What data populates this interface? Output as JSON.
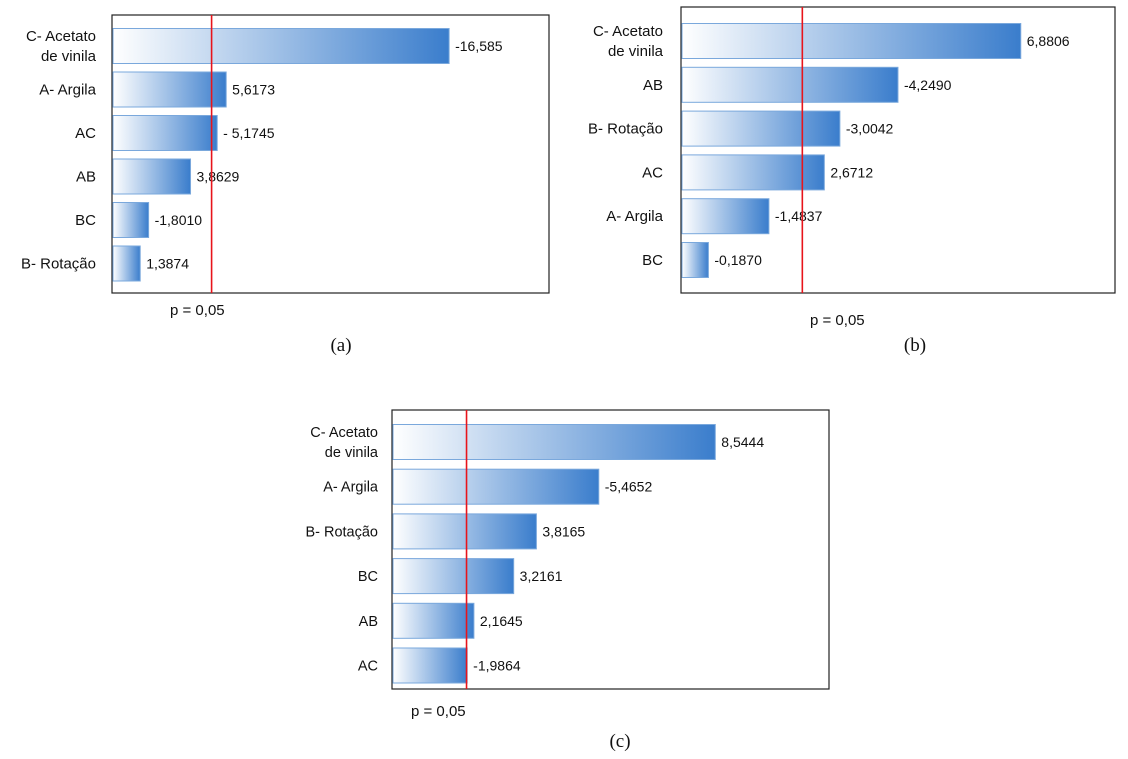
{
  "chart_data": [
    {
      "type": "bar",
      "orientation": "horizontal",
      "categories": [
        "C- Acetato de vinila",
        "A- Argila",
        "AC",
        "AB",
        "BC",
        "B- Rotação"
      ],
      "category_lines": [
        [
          "C- Acetato",
          "de vinila"
        ],
        [
          "A- Argila"
        ],
        [
          "AC"
        ],
        [
          "AB"
        ],
        [
          "BC"
        ],
        [
          "B- Rotação"
        ]
      ],
      "values": [
        16.585,
        5.6173,
        5.1745,
        3.8629,
        1.801,
        1.3874
      ],
      "value_labels": [
        "-16,585",
        "5,6173",
        "- 5,1745",
        "3,8629",
        "-1,8010",
        "1,3874"
      ],
      "xlim": [
        0,
        21.5
      ],
      "reference_line": {
        "value": 4.9,
        "label": "p = 0,05",
        "color": "#e8141b"
      },
      "caption": "(a)",
      "bar_gradient": [
        "#ffffff",
        "#3a7dcc"
      ]
    },
    {
      "type": "bar",
      "orientation": "horizontal",
      "categories": [
        "C- Acetato de vinila",
        "AB",
        "B- Rotação",
        "AC",
        "A- Argila",
        "BC"
      ],
      "category_lines": [
        [
          "C- Acetato",
          "de vinila"
        ],
        [
          "AB"
        ],
        [
          "B- Rotação"
        ],
        [
          "AC"
        ],
        [
          "A- Argila"
        ],
        [
          "BC"
        ]
      ],
      "values": [
        6.8806,
        4.249,
        3.0042,
        2.6712,
        1.4837,
        0.187
      ],
      "value_labels": [
        "6,8806",
        "-4,2490",
        "-3,0042",
        "2,6712",
        "-1,4837",
        "-0,1870"
      ],
      "xlim": [
        -0.4,
        8.9
      ],
      "reference_line": {
        "value": 2.2,
        "label": "p = 0,05",
        "color": "#e8141b"
      },
      "caption": "(b)",
      "bar_gradient": [
        "#ffffff",
        "#3a7dcc"
      ]
    },
    {
      "type": "bar",
      "orientation": "horizontal",
      "categories": [
        "C- Acetato de vinila",
        "A- Argila",
        "B- Rotação",
        "BC",
        "AB",
        "AC"
      ],
      "category_lines": [
        [
          "C- Acetato",
          "de vinila"
        ],
        [
          "A- Argila"
        ],
        [
          "B- Rotação"
        ],
        [
          "BC"
        ],
        [
          "AB"
        ],
        [
          "AC"
        ]
      ],
      "values": [
        8.5444,
        5.4652,
        3.8165,
        3.2161,
        2.1645,
        1.9864
      ],
      "value_labels": [
        "8,5444",
        "-5,4652",
        "3,8165",
        "3,2161",
        "2,1645",
        "-1,9864"
      ],
      "xlim": [
        0,
        11.55
      ],
      "reference_line": {
        "value": 1.97,
        "label": "p = 0,05",
        "color": "#e8141b"
      },
      "caption": "(c)",
      "bar_gradient": [
        "#ffffff",
        "#3a7dcc"
      ]
    }
  ]
}
